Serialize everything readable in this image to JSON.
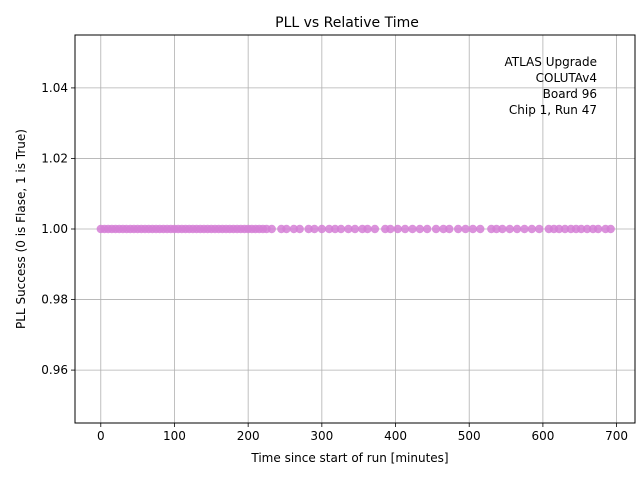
{
  "chart_data": {
    "type": "scatter",
    "title": "PLL vs Relative Time",
    "xlabel": "Time since start of run [minutes]",
    "ylabel": "PLL Success (0 is Flase, 1 is True)",
    "xlim": [
      -35,
      725
    ],
    "ylim": [
      0.945,
      1.055
    ],
    "xticks": [
      0,
      100,
      200,
      300,
      400,
      500,
      600,
      700
    ],
    "xtick_labels": [
      "0",
      "100",
      "200",
      "300",
      "400",
      "500",
      "600",
      "700"
    ],
    "yticks": [
      0.96,
      0.98,
      1.0,
      1.02,
      1.04
    ],
    "ytick_labels": [
      "0.96",
      "0.98",
      "1.00",
      "1.02",
      "1.04"
    ],
    "grid": true,
    "annotation": [
      "ATLAS Upgrade",
      "COLUTAv4",
      "Board 96",
      "Chip 1, Run 47"
    ],
    "marker_color": "#d57fd6",
    "series": [
      {
        "x": [
          0,
          5,
          10,
          15,
          20,
          25,
          30,
          35,
          40,
          45,
          50,
          55,
          60,
          65,
          70,
          75,
          80,
          85,
          90,
          95,
          100,
          105,
          110,
          115,
          120,
          125,
          130,
          135,
          140,
          145,
          150,
          155,
          160,
          165,
          170,
          175,
          180,
          185,
          190,
          195,
          200,
          205,
          210,
          215,
          220,
          225,
          232,
          245,
          252,
          262,
          270,
          282,
          290,
          300,
          310,
          318,
          326,
          336,
          345,
          355,
          362,
          372,
          386,
          393,
          403,
          413,
          423,
          433,
          443,
          455,
          465,
          473,
          485,
          495,
          505,
          515,
          530,
          537,
          545,
          555,
          565,
          575,
          585,
          595,
          608,
          615,
          622,
          630,
          638,
          645,
          652,
          660,
          668,
          675,
          685,
          692
        ],
        "y": [
          1,
          1,
          1,
          1,
          1,
          1,
          1,
          1,
          1,
          1,
          1,
          1,
          1,
          1,
          1,
          1,
          1,
          1,
          1,
          1,
          1,
          1,
          1,
          1,
          1,
          1,
          1,
          1,
          1,
          1,
          1,
          1,
          1,
          1,
          1,
          1,
          1,
          1,
          1,
          1,
          1,
          1,
          1,
          1,
          1,
          1,
          1,
          1,
          1,
          1,
          1,
          1,
          1,
          1,
          1,
          1,
          1,
          1,
          1,
          1,
          1,
          1,
          1,
          1,
          1,
          1,
          1,
          1,
          1,
          1,
          1,
          1,
          1,
          1,
          1,
          1,
          1,
          1,
          1,
          1,
          1,
          1,
          1,
          1,
          1,
          1,
          1,
          1,
          1,
          1,
          1,
          1,
          1,
          1,
          1,
          1
        ]
      }
    ]
  }
}
